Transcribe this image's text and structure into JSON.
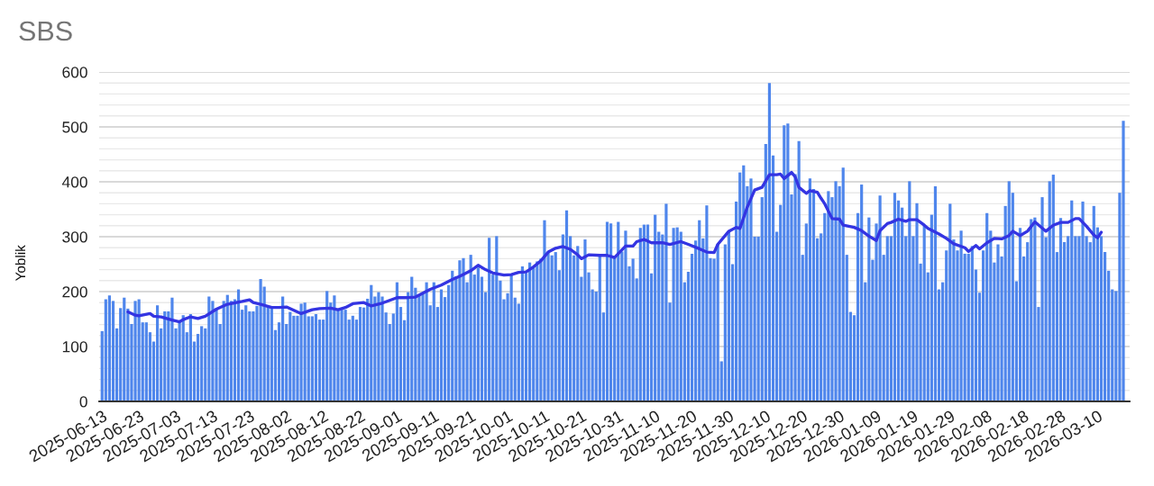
{
  "chart_data": {
    "type": "bar",
    "title": "SBS",
    "ylabel": "Yoblik",
    "x": [
      "2025-06-13",
      "2025-06-14",
      "2025-06-15",
      "2025-06-16",
      "2025-06-17",
      "2025-06-18",
      "2025-06-19",
      "2025-06-20",
      "2025-06-21",
      "2025-06-22",
      "2025-06-23",
      "2025-06-24",
      "2025-06-25",
      "2025-06-26",
      "2025-06-27",
      "2025-06-28",
      "2025-06-29",
      "2025-06-30",
      "2025-07-01",
      "2025-07-02",
      "2025-07-03",
      "2025-07-04",
      "2025-07-05",
      "2025-07-06",
      "2025-07-07",
      "2025-07-08",
      "2025-07-09",
      "2025-07-10",
      "2025-07-11",
      "2025-07-12",
      "2025-07-13",
      "2025-07-14",
      "2025-07-15",
      "2025-07-16",
      "2025-07-17",
      "2025-07-18",
      "2025-07-19",
      "2025-07-20",
      "2025-07-21",
      "2025-07-22",
      "2025-07-23",
      "2025-07-24",
      "2025-07-25",
      "2025-07-26",
      "2025-07-27",
      "2025-07-28",
      "2025-07-29",
      "2025-07-30",
      "2025-07-31",
      "2025-08-01",
      "2025-08-02",
      "2025-08-03",
      "2025-08-04",
      "2025-08-05",
      "2025-08-06",
      "2025-08-07",
      "2025-08-08",
      "2025-08-09",
      "2025-08-10",
      "2025-08-11",
      "2025-08-12",
      "2025-08-13",
      "2025-08-14",
      "2025-08-15",
      "2025-08-16",
      "2025-08-17",
      "2025-08-18",
      "2025-08-19",
      "2025-08-20",
      "2025-08-21",
      "2025-08-22",
      "2025-08-23",
      "2025-08-24",
      "2025-08-25",
      "2025-08-26",
      "2025-08-27",
      "2025-08-28",
      "2025-08-29",
      "2025-08-30",
      "2025-08-31",
      "2025-09-01",
      "2025-09-02",
      "2025-09-03",
      "2025-09-04",
      "2025-09-05",
      "2025-09-06",
      "2025-09-07",
      "2025-09-08",
      "2025-09-09",
      "2025-09-10",
      "2025-09-11",
      "2025-09-12",
      "2025-09-13",
      "2025-09-14",
      "2025-09-15",
      "2025-09-16",
      "2025-09-17",
      "2025-09-18",
      "2025-09-19",
      "2025-09-20",
      "2025-09-21",
      "2025-09-22",
      "2025-09-23",
      "2025-09-24",
      "2025-09-25",
      "2025-09-26",
      "2025-09-27",
      "2025-09-28",
      "2025-09-29",
      "2025-09-30",
      "2025-10-01",
      "2025-10-02",
      "2025-10-03",
      "2025-10-04",
      "2025-10-05",
      "2025-10-06",
      "2025-10-07",
      "2025-10-08",
      "2025-10-09",
      "2025-10-10",
      "2025-10-11",
      "2025-10-12",
      "2025-10-13",
      "2025-10-14",
      "2025-10-15",
      "2025-10-16",
      "2025-10-17",
      "2025-10-18",
      "2025-10-19",
      "2025-10-20",
      "2025-10-21",
      "2025-10-22",
      "2025-10-23",
      "2025-10-24",
      "2025-10-25",
      "2025-10-26",
      "2025-10-27",
      "2025-10-28",
      "2025-10-29",
      "2025-10-30",
      "2025-10-31",
      "2025-11-01",
      "2025-11-02",
      "2025-11-03",
      "2025-11-04",
      "2025-11-05",
      "2025-11-06",
      "2025-11-07",
      "2025-11-08",
      "2025-11-09",
      "2025-11-10",
      "2025-11-11",
      "2025-11-12",
      "2025-11-13",
      "2025-11-14",
      "2025-11-15",
      "2025-11-16",
      "2025-11-17",
      "2025-11-18",
      "2025-11-19",
      "2025-11-20",
      "2025-11-21",
      "2025-11-22",
      "2025-11-23",
      "2025-11-24",
      "2025-11-25",
      "2025-11-26",
      "2025-11-27",
      "2025-11-28",
      "2025-11-29",
      "2025-11-30",
      "2025-12-01",
      "2025-12-02",
      "2025-12-03",
      "2025-12-04",
      "2025-12-05",
      "2025-12-06",
      "2025-12-07",
      "2025-12-08",
      "2025-12-09",
      "2025-12-10",
      "2025-12-11",
      "2025-12-12",
      "2025-12-13",
      "2025-12-14",
      "2025-12-15",
      "2025-12-16",
      "2025-12-17",
      "2025-12-18",
      "2025-12-19",
      "2025-12-20",
      "2025-12-21",
      "2025-12-22",
      "2025-12-23",
      "2025-12-24",
      "2025-12-25",
      "2025-12-26",
      "2025-12-27",
      "2025-12-28",
      "2025-12-29",
      "2025-12-30",
      "2025-12-31",
      "2026-01-01",
      "2026-01-02",
      "2026-01-03",
      "2026-01-04",
      "2026-01-05",
      "2026-01-06",
      "2026-01-07",
      "2026-01-08",
      "2026-01-09",
      "2026-01-10",
      "2026-01-11",
      "2026-01-12",
      "2026-01-13",
      "2026-01-14",
      "2026-01-15",
      "2026-01-16",
      "2026-01-17",
      "2026-01-18",
      "2026-01-19",
      "2026-01-20",
      "2026-01-21",
      "2026-01-22",
      "2026-01-23",
      "2026-01-24",
      "2026-01-25",
      "2026-01-26",
      "2026-01-27",
      "2026-01-28",
      "2026-01-29",
      "2026-01-30",
      "2026-01-31",
      "2026-02-01",
      "2026-02-02",
      "2026-02-03",
      "2026-02-04",
      "2026-02-05",
      "2026-02-06",
      "2026-02-07",
      "2026-02-08",
      "2026-02-09",
      "2026-02-10",
      "2026-02-11",
      "2026-02-12",
      "2026-02-13",
      "2026-02-14",
      "2026-02-15",
      "2026-02-16",
      "2026-02-17",
      "2026-02-18",
      "2026-02-19",
      "2026-02-20",
      "2026-02-21",
      "2026-02-22",
      "2026-02-23",
      "2026-02-24",
      "2026-02-25",
      "2026-02-26",
      "2026-02-27",
      "2026-02-28",
      "2026-03-01",
      "2026-03-02",
      "2026-03-03",
      "2026-03-04",
      "2026-03-05",
      "2026-03-06",
      "2026-03-07",
      "2026-03-08",
      "2026-03-09",
      "2026-03-10",
      "2026-03-11",
      "2026-03-12",
      "2026-03-13",
      "2026-03-14",
      "2026-03-15",
      "2026-03-16",
      "2026-03-17"
    ],
    "xlim": [
      "2025-06-12T05:00",
      "2026-03-18T17:00"
    ],
    "xticks": [
      "2025-06-13",
      "2025-06-23",
      "2025-07-03",
      "2025-07-13",
      "2025-07-23",
      "2025-08-02",
      "2025-08-12",
      "2025-08-22",
      "2025-09-01",
      "2025-09-11",
      "2025-09-21",
      "2025-10-01",
      "2025-10-11",
      "2025-10-21",
      "2025-10-31",
      "2025-11-10",
      "2025-11-20",
      "2025-11-30",
      "2025-12-10",
      "2025-12-20",
      "2025-12-30",
      "2026-01-09",
      "2026-01-19",
      "2026-01-29",
      "2026-02-08",
      "2026-02-18",
      "2026-02-28",
      "2026-03-10"
    ],
    "ylim": [
      0,
      600
    ],
    "yticks": [
      0,
      {
        "value": 20,
        "label": null
      },
      {
        "value": 40,
        "label": null
      },
      {
        "value": 60,
        "label": null
      },
      {
        "value": 80,
        "label": null
      },
      100,
      {
        "value": 120,
        "label": null
      },
      {
        "value": 140,
        "label": null
      },
      {
        "value": 160,
        "label": null
      },
      {
        "value": 180,
        "label": null
      },
      200,
      {
        "value": 220,
        "label": null
      },
      {
        "value": 240,
        "label": null
      },
      {
        "value": 260,
        "label": null
      },
      {
        "value": 280,
        "label": null
      },
      300,
      {
        "value": 320,
        "label": null
      },
      {
        "value": 340,
        "label": null
      },
      {
        "value": 360,
        "label": null
      },
      {
        "value": 380,
        "label": null
      },
      400,
      {
        "value": 420,
        "label": null
      },
      {
        "value": 440,
        "label": null
      },
      {
        "value": 460,
        "label": null
      },
      {
        "value": 480,
        "label": null
      },
      500,
      {
        "value": 520,
        "label": null
      },
      {
        "value": 540,
        "label": null
      },
      {
        "value": 560,
        "label": null
      },
      {
        "value": 580,
        "label": null
      },
      600
    ],
    "grid": "y",
    "series": [
      {
        "color": "#4f86ec",
        "values": [
          128,
          186,
          193,
          183,
          133,
          170,
          189,
          169,
          141,
          183,
          186,
          144,
          144,
          126,
          109,
          175,
          133,
          164,
          164,
          189,
          133,
          144,
          157,
          126,
          159,
          109,
          123,
          137,
          133,
          191,
          183,
          169,
          141,
          183,
          194,
          183,
          186,
          204,
          167,
          175,
          164,
          164,
          174,
          223,
          209,
          172,
          171,
          130,
          144,
          191,
          141,
          163,
          156,
          156,
          178,
          180,
          155,
          155,
          159,
          149,
          149,
          201,
          180,
          193,
          167,
          167,
          167,
          149,
          156,
          149,
          172,
          171,
          187,
          212,
          191,
          199,
          191,
          162,
          141,
          160,
          217,
          172,
          148,
          199,
          227,
          207,
          193,
          196,
          217,
          175,
          217,
          172,
          204,
          190,
          212,
          238,
          228,
          257,
          261,
          217,
          267,
          231,
          244,
          227,
          199,
          298,
          231,
          301,
          220,
          186,
          197,
          230,
          189,
          178,
          246,
          234,
          253,
          246,
          255,
          260,
          330,
          271,
          266,
          272,
          239,
          304,
          348,
          301,
          266,
          283,
          227,
          295,
          235,
          204,
          200,
          264,
          162,
          327,
          324,
          261,
          327,
          273,
          311,
          246,
          260,
          224,
          316,
          322,
          322,
          233,
          340,
          309,
          304,
          360,
          180,
          316,
          317,
          309,
          217,
          236,
          269,
          293,
          330,
          297,
          357,
          261,
          260,
          287,
          73,
          286,
          310,
          250,
          364,
          417,
          430,
          392,
          406,
          300,
          300,
          372,
          469,
          580,
          448,
          309,
          358,
          503,
          506,
          377,
          414,
          474,
          267,
          324,
          406,
          387,
          297,
          306,
          343,
          383,
          372,
          401,
          392,
          426,
          267,
          163,
          157,
          343,
          395,
          217,
          335,
          258,
          324,
          375,
          267,
          301,
          301,
          380,
          366,
          353,
          301,
          401,
          301,
          361,
          251,
          321,
          235,
          340,
          392,
          204,
          217,
          275,
          360,
          295,
          275,
          311,
          269,
          269,
          283,
          240,
          198,
          275,
          343,
          311,
          253,
          286,
          264,
          356,
          401,
          380,
          219,
          316,
          264,
          290,
          332,
          335,
          172,
          372,
          299,
          401,
          413,
          272,
          334,
          290,
          301,
          366,
          301,
          301,
          364,
          301,
          290,
          356,
          317,
          301,
          272,
          238,
          204,
          201,
          380,
          511
        ]
      },
      {
        "type": "line",
        "color": "#3434e2",
        "x": [
          "2025-06-20",
          "2025-06-22",
          "2025-06-23",
          "2025-06-26",
          "2025-06-27",
          "2025-06-29",
          "2025-07-02",
          "2025-07-04",
          "2025-07-05",
          "2025-07-07",
          "2025-07-09",
          "2025-07-11",
          "2025-07-14",
          "2025-07-17",
          "2025-07-21",
          "2025-07-23",
          "2025-07-24",
          "2025-07-26",
          "2025-07-29",
          "2025-07-31",
          "2025-08-02",
          "2025-08-04",
          "2025-08-06",
          "2025-08-09",
          "2025-08-11",
          "2025-08-14",
          "2025-08-16",
          "2025-08-18",
          "2025-08-20",
          "2025-08-23",
          "2025-08-25",
          "2025-08-28",
          "2025-08-30",
          "2025-09-01",
          "2025-09-04",
          "2025-09-06",
          "2025-09-08",
          "2025-09-10",
          "2025-09-13",
          "2025-09-16",
          "2025-09-18",
          "2025-09-21",
          "2025-09-23",
          "2025-09-25",
          "2025-09-27",
          "2025-09-30",
          "2025-10-02",
          "2025-10-04",
          "2025-10-06",
          "2025-10-08",
          "2025-10-10",
          "2025-10-12",
          "2025-10-14",
          "2025-10-16",
          "2025-10-18",
          "2025-10-20",
          "2025-10-21",
          "2025-10-23",
          "2025-10-26",
          "2025-10-28",
          "2025-10-30",
          "2025-11-02",
          "2025-11-04",
          "2025-11-05",
          "2025-11-07",
          "2025-11-09",
          "2025-11-12",
          "2025-11-14",
          "2025-11-17",
          "2025-11-19",
          "2025-11-22",
          "2025-11-24",
          "2025-11-26",
          "2025-11-27",
          "2025-11-30",
          "2025-12-02",
          "2025-12-03",
          "2025-12-05",
          "2025-12-07",
          "2025-12-09",
          "2025-12-11",
          "2025-12-13",
          "2025-12-14",
          "2025-12-15",
          "2025-12-17",
          "2025-12-18",
          "2025-12-19",
          "2025-12-21",
          "2025-12-22",
          "2025-12-24",
          "2025-12-25",
          "2025-12-26",
          "2025-12-28",
          "2025-12-30",
          "2025-12-31",
          "2026-01-03",
          "2026-01-05",
          "2026-01-07",
          "2026-01-09",
          "2026-01-10",
          "2026-01-12",
          "2026-01-13",
          "2026-01-15",
          "2026-01-17",
          "2026-01-18",
          "2026-01-20",
          "2026-01-22",
          "2026-01-23",
          "2026-01-26",
          "2026-01-28",
          "2026-01-30",
          "2026-02-02",
          "2026-02-03",
          "2026-02-05",
          "2026-02-06",
          "2026-02-08",
          "2026-02-10",
          "2026-02-12",
          "2026-02-14",
          "2026-02-15",
          "2026-02-17",
          "2026-02-19",
          "2026-02-21",
          "2026-02-24",
          "2026-02-26",
          "2026-02-28",
          "2026-03-02",
          "2026-03-04",
          "2026-03-05",
          "2026-03-07",
          "2026-03-09",
          "2026-03-10",
          "2026-03-11"
        ],
        "values": [
          163,
          157,
          156,
          160,
          155,
          154,
          148,
          145,
          149,
          154,
          151,
          155,
          168,
          177,
          182,
          185,
          180,
          177,
          171,
          171,
          172,
          166,
          160,
          167,
          169,
          170,
          167,
          171,
          178,
          180,
          174,
          179,
          184,
          189,
          189,
          190,
          197,
          204,
          212,
          222,
          228,
          238,
          248,
          240,
          234,
          230,
          231,
          235,
          236,
          245,
          256,
          272,
          279,
          282,
          277,
          267,
          260,
          267,
          266,
          266,
          262,
          283,
          283,
          291,
          295,
          289,
          289,
          286,
          291,
          286,
          278,
          272,
          271,
          286,
          310,
          317,
          315,
          354,
          385,
          390,
          413,
          413,
          414,
          406,
          417,
          409,
          390,
          379,
          384,
          381,
          370,
          360,
          333,
          332,
          321,
          317,
          311,
          301,
          293,
          311,
          324,
          326,
          332,
          328,
          331,
          331,
          321,
          315,
          305,
          297,
          287,
          280,
          273,
          284,
          278,
          289,
          297,
          296,
          302,
          310,
          302,
          310,
          327,
          310,
          321,
          326,
          326,
          333,
          333,
          319,
          303,
          298,
          308
        ]
      }
    ]
  }
}
